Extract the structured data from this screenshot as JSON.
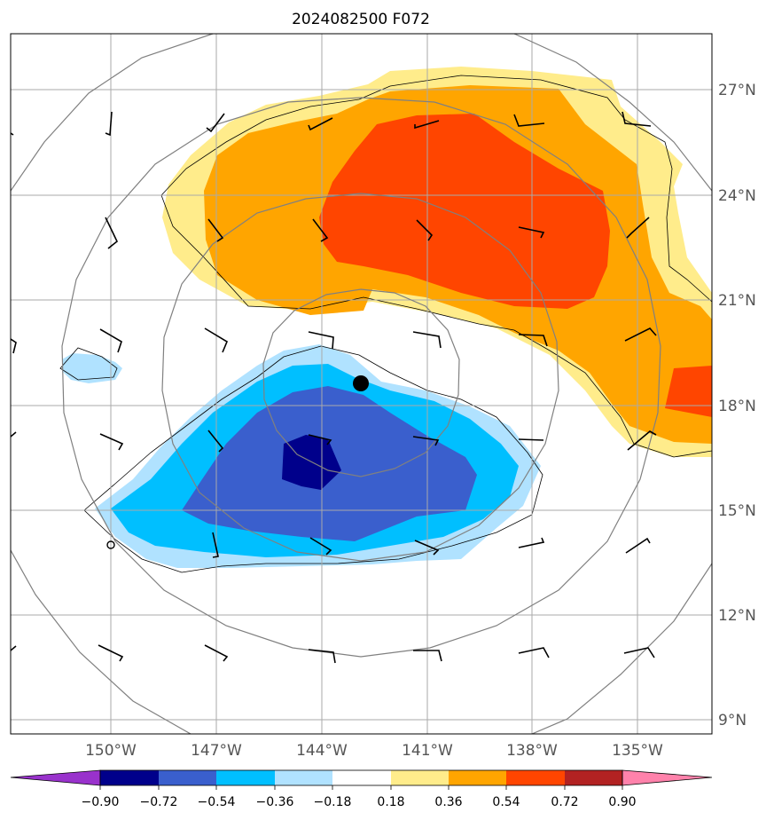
{
  "title": "2024082500 F072",
  "map": {
    "lon_labels": [
      "150°W",
      "147°W",
      "144°W",
      "141°W",
      "138°W",
      "135°W"
    ],
    "lat_labels": [
      "27°N",
      "24°N",
      "21°N",
      "18°N",
      "15°N",
      "12°N",
      "9°N"
    ],
    "gridlines": true,
    "storm_center": {
      "lon": "142.9°W",
      "lat": "18.6°N"
    }
  },
  "colorbar": {
    "levels": [
      "−0.90",
      "−0.72",
      "−0.54",
      "−0.36",
      "−0.18",
      "0.18",
      "0.36",
      "0.54",
      "0.72",
      "0.90"
    ],
    "colors": {
      "lt_-0.90": "#9932cc",
      "-0.90_-0.72": "#00008b",
      "-0.72_-0.54": "#3a5fcd",
      "-0.54_-0.36": "#00bfff",
      "-0.36_-0.18": "#b0e2ff",
      "-0.18_0.18": "#ffffff",
      "0.18_0.36": "#ffec8b",
      "0.36_0.54": "#ffa500",
      "0.54_0.72": "#ff4500",
      "0.72_0.90": "#b22222",
      "gt_0.90": "#ff82ab"
    },
    "extend": "both"
  }
}
